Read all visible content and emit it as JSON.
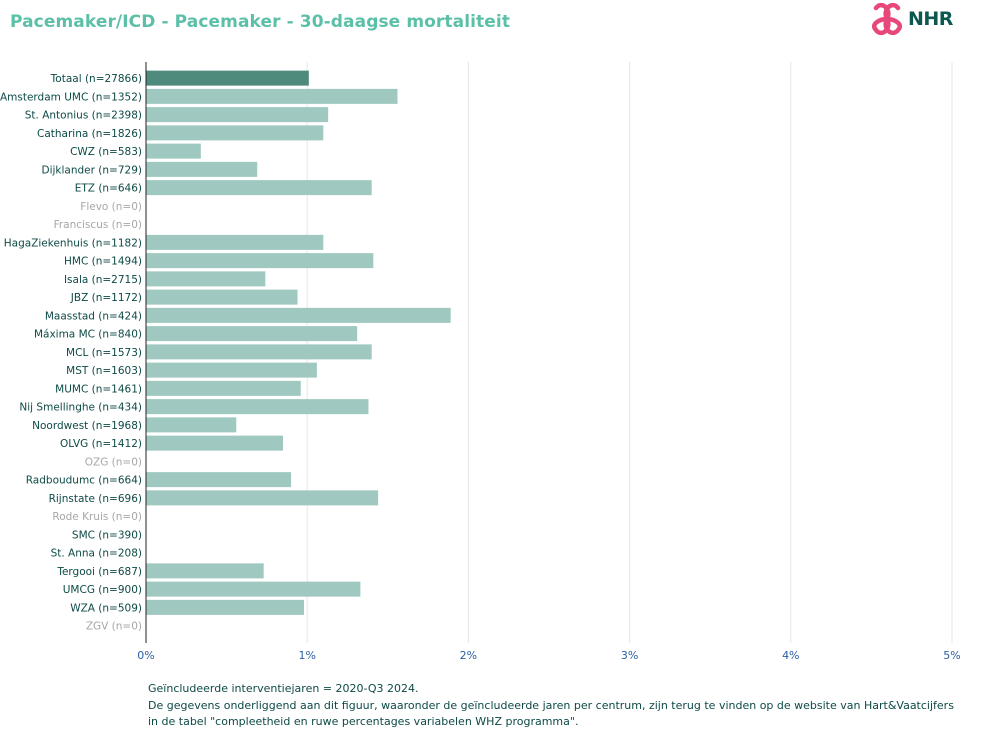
{
  "title": "Pacemaker/ICD - Pacemaker - 30-daagse mortaliteit",
  "logo_text": "NHR",
  "colors": {
    "title": "#5cbfa8",
    "total_bar": "#4e8b7d",
    "bar": "#9fc8c0",
    "label": "#0d4a46",
    "label_empty": "#a7a7a7",
    "logo_mark": "#e8477a",
    "logo_text": "#0d5751"
  },
  "footnote": {
    "line1": "Geïncludeerde interventiejaren = 2020-Q3 2024.",
    "line2": "De gegevens onderliggend aan dit figuur, waaronder de geïncludeerde jaren per centrum, zijn terug te vinden op de website van Hart&Vaatcijfers",
    "line3": "in de tabel \"compleetheid en ruwe percentages variabelen WHZ programma\"."
  },
  "chart_data": {
    "type": "bar",
    "orientation": "horizontal",
    "categories": [
      "Totaal (n=27866)",
      "Amsterdam UMC (n=1352)",
      "St. Antonius (n=2398)",
      "Catharina (n=1826)",
      "CWZ (n=583)",
      "Dijklander (n=729)",
      "ETZ (n=646)",
      "Flevo (n=0)",
      "Franciscus (n=0)",
      "HagaZiekenhuis (n=1182)",
      "HMC (n=1494)",
      "Isala (n=2715)",
      "JBZ (n=1172)",
      "Maasstad (n=424)",
      "Máxima MC (n=840)",
      "MCL (n=1573)",
      "MST (n=1603)",
      "MUMC (n=1461)",
      "Nij Smellinghe (n=434)",
      "Noordwest (n=1968)",
      "OLVG (n=1412)",
      "OZG (n=0)",
      "Radboudumc (n=664)",
      "Rijnstate (n=696)",
      "Rode Kruis (n=0)",
      "SMC (n=390)",
      "St. Anna (n=208)",
      "Tergooi (n=687)",
      "UMCG (n=900)",
      "WZA (n=509)",
      "ZGV (n=0)"
    ],
    "values": [
      1.01,
      1.56,
      1.13,
      1.1,
      0.34,
      0.69,
      1.4,
      null,
      null,
      1.1,
      1.41,
      0.74,
      0.94,
      1.89,
      1.31,
      1.4,
      1.06,
      0.96,
      1.38,
      0.56,
      0.85,
      null,
      0.9,
      1.44,
      null,
      0.0,
      0.0,
      0.73,
      1.33,
      0.98,
      null
    ],
    "empty": [
      false,
      false,
      false,
      false,
      false,
      false,
      false,
      true,
      true,
      false,
      false,
      false,
      false,
      false,
      false,
      false,
      false,
      false,
      false,
      false,
      false,
      true,
      false,
      false,
      true,
      false,
      false,
      false,
      false,
      false,
      true
    ],
    "highlight_index": 0,
    "xlim": [
      0,
      5
    ],
    "xticks": [
      "0%",
      "1%",
      "2%",
      "3%",
      "4%",
      "5%"
    ],
    "grid": true,
    "xlabel": "",
    "ylabel": ""
  }
}
